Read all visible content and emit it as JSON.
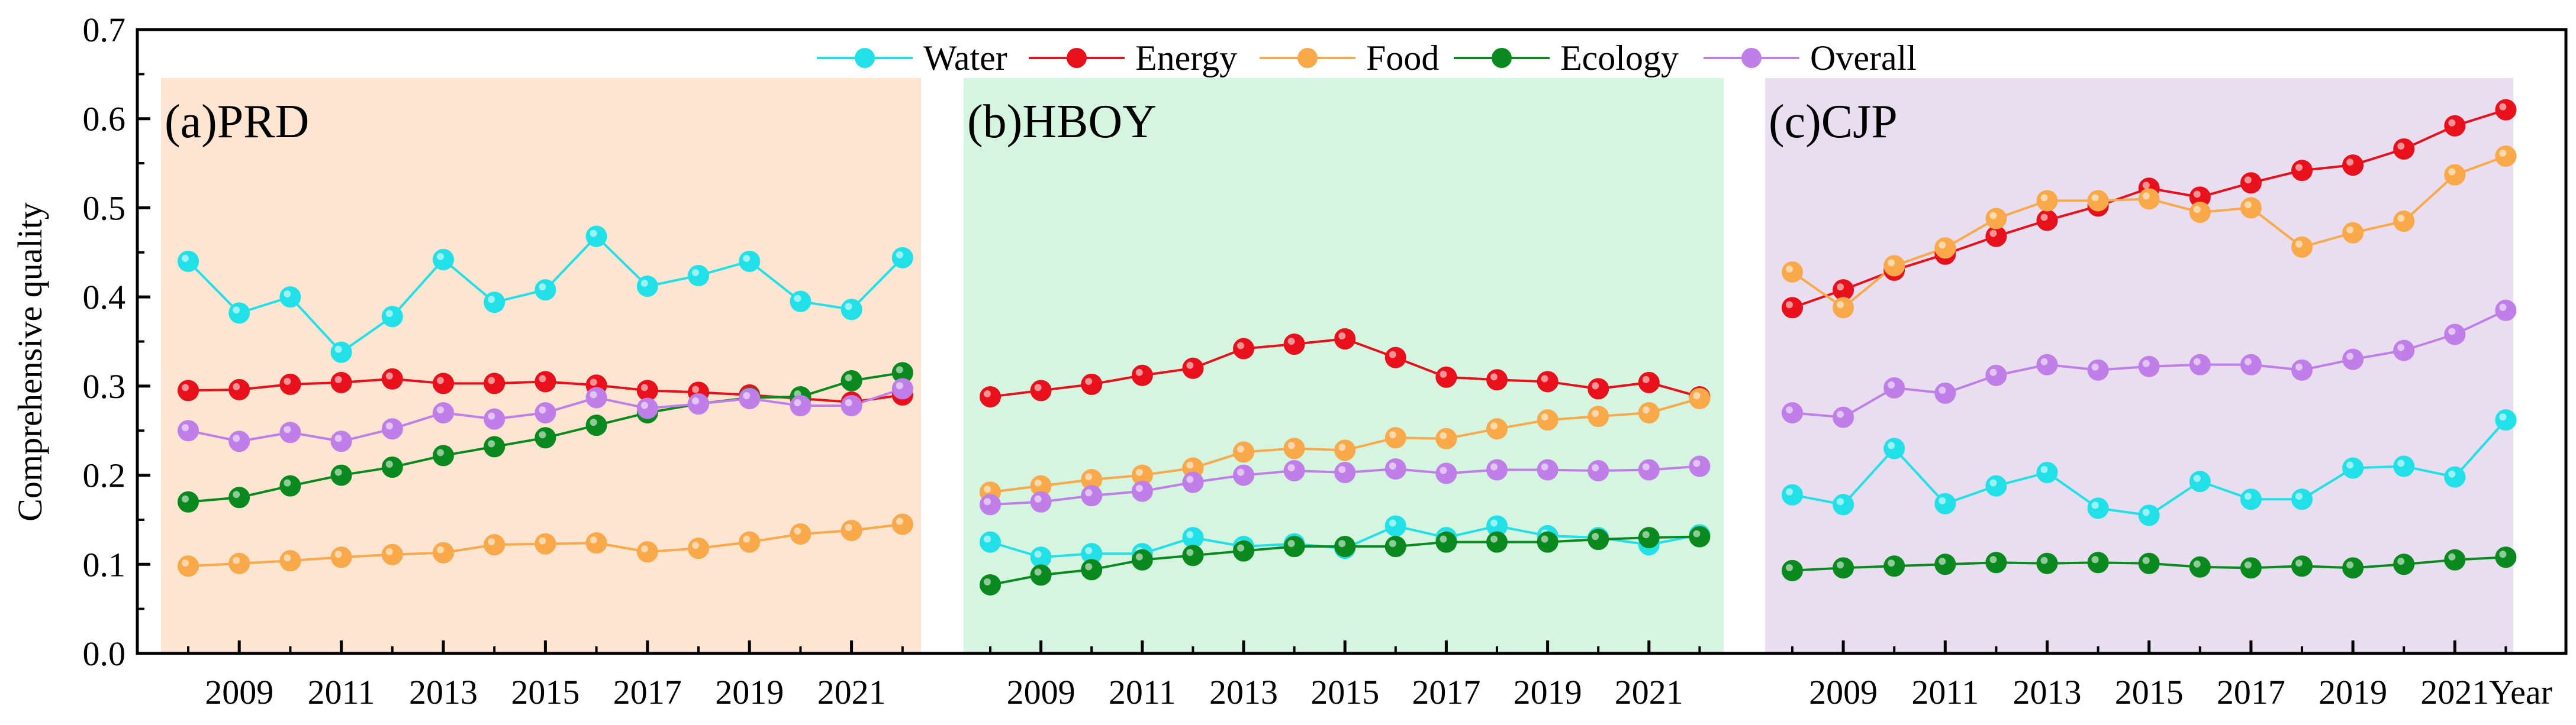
{
  "chart_data": {
    "type": "line",
    "ylabel": "Comprehensive quality",
    "xlabel": "Year",
    "ylim": [
      0,
      0.7
    ],
    "yticks": [
      "0.0",
      "0.1",
      "0.2",
      "0.3",
      "0.4",
      "0.5",
      "0.6",
      "0.7"
    ],
    "x": [
      2008,
      2009,
      2010,
      2011,
      2012,
      2013,
      2014,
      2015,
      2016,
      2017,
      2018,
      2019,
      2020,
      2021,
      2022
    ],
    "xticks": [
      "2009",
      "2011",
      "2013",
      "2015",
      "2017",
      "2019",
      "2021"
    ],
    "legend": [
      {
        "name": "Water",
        "color": "#22e0e8"
      },
      {
        "name": "Energy",
        "color": "#e8101a"
      },
      {
        "name": "Food",
        "color": "#f9a84a"
      },
      {
        "name": "Ecology",
        "color": "#0a8a1e"
      },
      {
        "name": "Overall",
        "color": "#c07fe8"
      }
    ],
    "panels": [
      {
        "label": "(a)PRD",
        "background": "#fde5d2",
        "series": [
          {
            "name": "Water",
            "values": [
              0.44,
              0.382,
              0.4,
              0.338,
              0.378,
              0.442,
              0.394,
              0.408,
              0.468,
              0.412,
              0.424,
              0.44,
              0.395,
              0.386,
              0.444
            ]
          },
          {
            "name": "Energy",
            "values": [
              0.295,
              0.296,
              0.302,
              0.304,
              0.308,
              0.303,
              0.303,
              0.305,
              0.301,
              0.295,
              0.293,
              0.29,
              0.286,
              0.282,
              0.29
            ]
          },
          {
            "name": "Food",
            "values": [
              0.098,
              0.101,
              0.104,
              0.108,
              0.111,
              0.113,
              0.122,
              0.123,
              0.124,
              0.114,
              0.118,
              0.125,
              0.134,
              0.138,
              0.145
            ]
          },
          {
            "name": "Ecology",
            "values": [
              0.17,
              0.175,
              0.188,
              0.2,
              0.209,
              0.222,
              0.232,
              0.242,
              0.256,
              0.27,
              0.28,
              0.287,
              0.288,
              0.306,
              0.315
            ]
          },
          {
            "name": "Overall",
            "values": [
              0.25,
              0.238,
              0.248,
              0.238,
              0.252,
              0.27,
              0.263,
              0.27,
              0.287,
              0.275,
              0.28,
              0.286,
              0.278,
              0.278,
              0.297
            ]
          }
        ]
      },
      {
        "label": "(b)HBOY",
        "background": "#d5f5e0",
        "series": [
          {
            "name": "Water",
            "values": [
              0.125,
              0.108,
              0.112,
              0.112,
              0.13,
              0.12,
              0.123,
              0.118,
              0.143,
              0.13,
              0.143,
              0.132,
              0.13,
              0.122,
              0.133
            ]
          },
          {
            "name": "Energy",
            "values": [
              0.288,
              0.295,
              0.302,
              0.312,
              0.32,
              0.342,
              0.347,
              0.353,
              0.332,
              0.31,
              0.307,
              0.305,
              0.297,
              0.304,
              0.288
            ]
          },
          {
            "name": "Food",
            "values": [
              0.181,
              0.188,
              0.195,
              0.2,
              0.208,
              0.226,
              0.23,
              0.228,
              0.242,
              0.241,
              0.252,
              0.262,
              0.266,
              0.27,
              0.286
            ]
          },
          {
            "name": "Ecology",
            "values": [
              0.077,
              0.088,
              0.094,
              0.105,
              0.11,
              0.115,
              0.12,
              0.12,
              0.12,
              0.125,
              0.125,
              0.125,
              0.128,
              0.13,
              0.131
            ]
          },
          {
            "name": "Overall",
            "values": [
              0.167,
              0.17,
              0.177,
              0.182,
              0.192,
              0.2,
              0.205,
              0.203,
              0.207,
              0.202,
              0.206,
              0.206,
              0.205,
              0.206,
              0.21
            ]
          }
        ]
      },
      {
        "label": "(c)CJP",
        "background": "#e8def0",
        "series": [
          {
            "name": "Water",
            "values": [
              0.178,
              0.167,
              0.23,
              0.168,
              0.188,
              0.203,
              0.163,
              0.155,
              0.193,
              0.173,
              0.173,
              0.208,
              0.21,
              0.198,
              0.262
            ]
          },
          {
            "name": "Energy",
            "values": [
              0.388,
              0.408,
              0.43,
              0.448,
              0.468,
              0.486,
              0.502,
              0.522,
              0.512,
              0.528,
              0.542,
              0.548,
              0.566,
              0.592,
              0.61
            ]
          },
          {
            "name": "Food",
            "values": [
              0.428,
              0.388,
              0.435,
              0.455,
              0.488,
              0.508,
              0.508,
              0.51,
              0.495,
              0.5,
              0.456,
              0.472,
              0.485,
              0.537,
              0.558
            ]
          },
          {
            "name": "Ecology",
            "values": [
              0.093,
              0.096,
              0.098,
              0.1,
              0.102,
              0.101,
              0.102,
              0.101,
              0.097,
              0.096,
              0.098,
              0.096,
              0.1,
              0.105,
              0.108
            ]
          },
          {
            "name": "Overall",
            "values": [
              0.27,
              0.265,
              0.298,
              0.292,
              0.312,
              0.324,
              0.318,
              0.322,
              0.324,
              0.324,
              0.318,
              0.33,
              0.34,
              0.358,
              0.385
            ]
          }
        ]
      }
    ]
  }
}
